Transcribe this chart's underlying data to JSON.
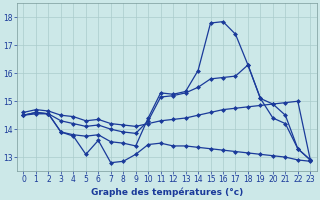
{
  "hours": [
    0,
    1,
    2,
    3,
    4,
    5,
    6,
    7,
    8,
    9,
    10,
    11,
    12,
    13,
    14,
    15,
    16,
    17,
    18,
    19,
    20,
    21,
    22,
    23
  ],
  "line_hump": [
    14.5,
    14.6,
    14.55,
    13.9,
    13.8,
    13.75,
    13.8,
    13.55,
    13.5,
    13.4,
    14.4,
    15.3,
    15.25,
    15.35,
    16.1,
    17.8,
    17.85,
    17.4,
    16.3,
    15.1,
    14.4,
    14.2,
    13.3,
    12.9
  ],
  "line_wavy": [
    14.5,
    14.6,
    14.55,
    13.9,
    13.75,
    13.1,
    13.6,
    12.8,
    12.85,
    13.1,
    13.45,
    13.5,
    13.4,
    13.4,
    13.35,
    13.3,
    13.25,
    13.2,
    13.15,
    13.1,
    13.05,
    13.0,
    12.9,
    12.85
  ],
  "line_rise": [
    14.5,
    14.55,
    14.55,
    14.3,
    14.2,
    14.1,
    14.15,
    14.0,
    13.9,
    13.85,
    14.3,
    15.15,
    15.2,
    15.3,
    15.5,
    15.8,
    15.85,
    15.9,
    16.3,
    15.1,
    14.9,
    14.5,
    13.3,
    12.9
  ],
  "line_flat": [
    14.6,
    14.7,
    14.65,
    14.5,
    14.45,
    14.3,
    14.35,
    14.2,
    14.15,
    14.1,
    14.2,
    14.3,
    14.35,
    14.4,
    14.5,
    14.6,
    14.7,
    14.75,
    14.8,
    14.85,
    14.9,
    14.95,
    15.0,
    12.9
  ],
  "bg_color": "#cce8e8",
  "grid_color": "#aacccc",
  "line_color": "#1a3a9a",
  "xlabel": "Graphe des températures (°c)",
  "ylim": [
    12.5,
    18.5
  ],
  "yticks": [
    13,
    14,
    15,
    16,
    17,
    18
  ],
  "xticks": [
    0,
    1,
    2,
    3,
    4,
    5,
    6,
    7,
    8,
    9,
    10,
    11,
    12,
    13,
    14,
    15,
    16,
    17,
    18,
    19,
    20,
    21,
    22,
    23
  ]
}
